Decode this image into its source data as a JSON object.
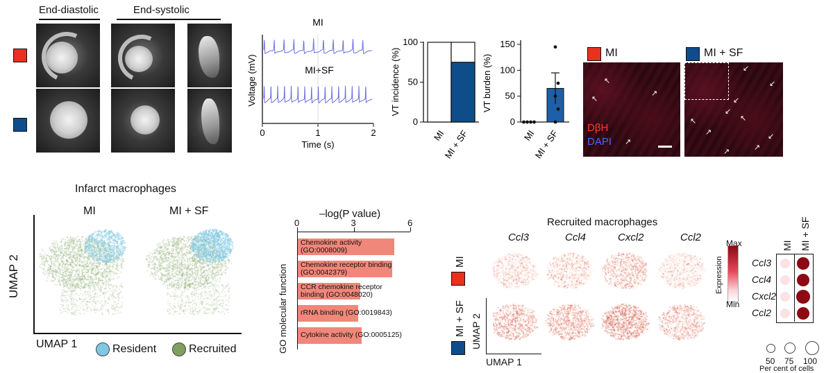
{
  "panel_a": {
    "headers": [
      "End-diastolic",
      "End-systolic"
    ],
    "colors": {
      "mi": "#e8311f",
      "mi_sf": "#0f4c8a"
    }
  },
  "panel_b": {
    "traces": [
      "MI",
      "MI+SF"
    ],
    "ylabel": "Voltage (mV)",
    "xlabel": "Time (s)",
    "xticks": [
      "0",
      "1",
      "2"
    ]
  },
  "panel_c": {
    "ylabel": "VT incidence (%)",
    "yticks": [
      "0",
      "50",
      "100"
    ],
    "categories": [
      "MI",
      "MI + SF"
    ]
  },
  "panel_d": {
    "ylabel": "VT burden (%)",
    "yticks": [
      "0",
      "50",
      "100",
      "150"
    ],
    "categories": [
      "MI",
      "MI + SF"
    ]
  },
  "panel_e": {
    "labels": [
      "MI",
      "MI + SF"
    ],
    "stain1": "DβH",
    "stain2": "DAPI"
  },
  "panel_f": {
    "title": "Infarct macrophages",
    "groups": [
      "MI",
      "MI + SF"
    ],
    "ylabel": "UMAP 2",
    "xlabel": "UMAP 1",
    "legend": [
      "Resident",
      "Recruited"
    ],
    "colors": {
      "resident": "#7ec8e3",
      "recruited": "#7fa060"
    }
  },
  "panel_g": {
    "title": "–log(P value)",
    "ylabel": "GO molecular function",
    "ticks": [
      "0",
      "3",
      "6"
    ],
    "terms": [
      {
        "line1": "Chemokine activity",
        "line2": "(GO:0008009)"
      },
      {
        "line1": "Chemokine receptor binding",
        "line2": "(GO:0042379)"
      },
      {
        "line1": "CCR chemokine receptor",
        "line2": "binding (GO:0048020)"
      },
      {
        "line1": "rRNA binding (GO:0019843)",
        "line2": ""
      },
      {
        "line1": "Cytokine activity (GO:0005125)",
        "line2": ""
      }
    ]
  },
  "panel_h": {
    "title": "Recruited macrophages",
    "genes": [
      "Ccl3",
      "Ccl4",
      "Cxcl2",
      "Ccl2"
    ],
    "rows": [
      "MI",
      "MI + SF"
    ],
    "ylabel": "UMAP 2",
    "xlabel": "UMAP 1",
    "scale_title": "Expression",
    "scale_max": "Max",
    "scale_min": "Min",
    "dot_cols": [
      "MI",
      "MI + SF"
    ],
    "size_legend": [
      "50",
      "75",
      "100"
    ],
    "size_title": "Per cent of cells"
  },
  "chart_data": [
    {
      "type": "line",
      "title": "",
      "xlabel": "Time (s)",
      "ylabel": "Voltage (mV)",
      "xlim": [
        0,
        2
      ],
      "series": [
        {
          "name": "MI",
          "beats_per_2s": 11
        },
        {
          "name": "MI+SF",
          "beats_per_2s": 16
        }
      ]
    },
    {
      "type": "bar",
      "title": "",
      "ylabel": "VT incidence (%)",
      "categories": [
        "MI",
        "MI + SF"
      ],
      "values": [
        0,
        75
      ],
      "ylim": [
        0,
        100
      ]
    },
    {
      "type": "bar",
      "title": "",
      "ylabel": "VT burden (%)",
      "categories": [
        "MI",
        "MI + SF"
      ],
      "values": [
        0,
        65
      ],
      "error": [
        0,
        30
      ],
      "points": [
        [
          0,
          0,
          0,
          0
        ],
        [
          145,
          75,
          50,
          25,
          0
        ]
      ],
      "ylim": [
        0,
        150
      ]
    },
    {
      "type": "bar",
      "orientation": "horizontal",
      "title": "–log(P value)",
      "categories": [
        "Chemokine activity (GO:0008009)",
        "Chemokine receptor binding (GO:0042379)",
        "CCR chemokine receptor binding (GO:0048020)",
        "rRNA binding (GO:0019843)",
        "Cytokine activity (GO:0005125)"
      ],
      "values": [
        5.1,
        5.0,
        3.3,
        3.2,
        3.4
      ],
      "xlim": [
        0,
        6
      ]
    },
    {
      "type": "heatmap",
      "title": "Recruited macrophages dot plot",
      "rows": [
        "Ccl3",
        "Ccl4",
        "Cxcl2",
        "Ccl2"
      ],
      "cols": [
        "MI",
        "MI + SF"
      ],
      "expression": [
        [
          0.1,
          1.0
        ],
        [
          0.1,
          1.0
        ],
        [
          0.1,
          1.0
        ],
        [
          0.1,
          1.0
        ]
      ],
      "percent": [
        [
          75,
          90
        ],
        [
          75,
          90
        ],
        [
          75,
          100
        ],
        [
          75,
          95
        ]
      ]
    }
  ]
}
